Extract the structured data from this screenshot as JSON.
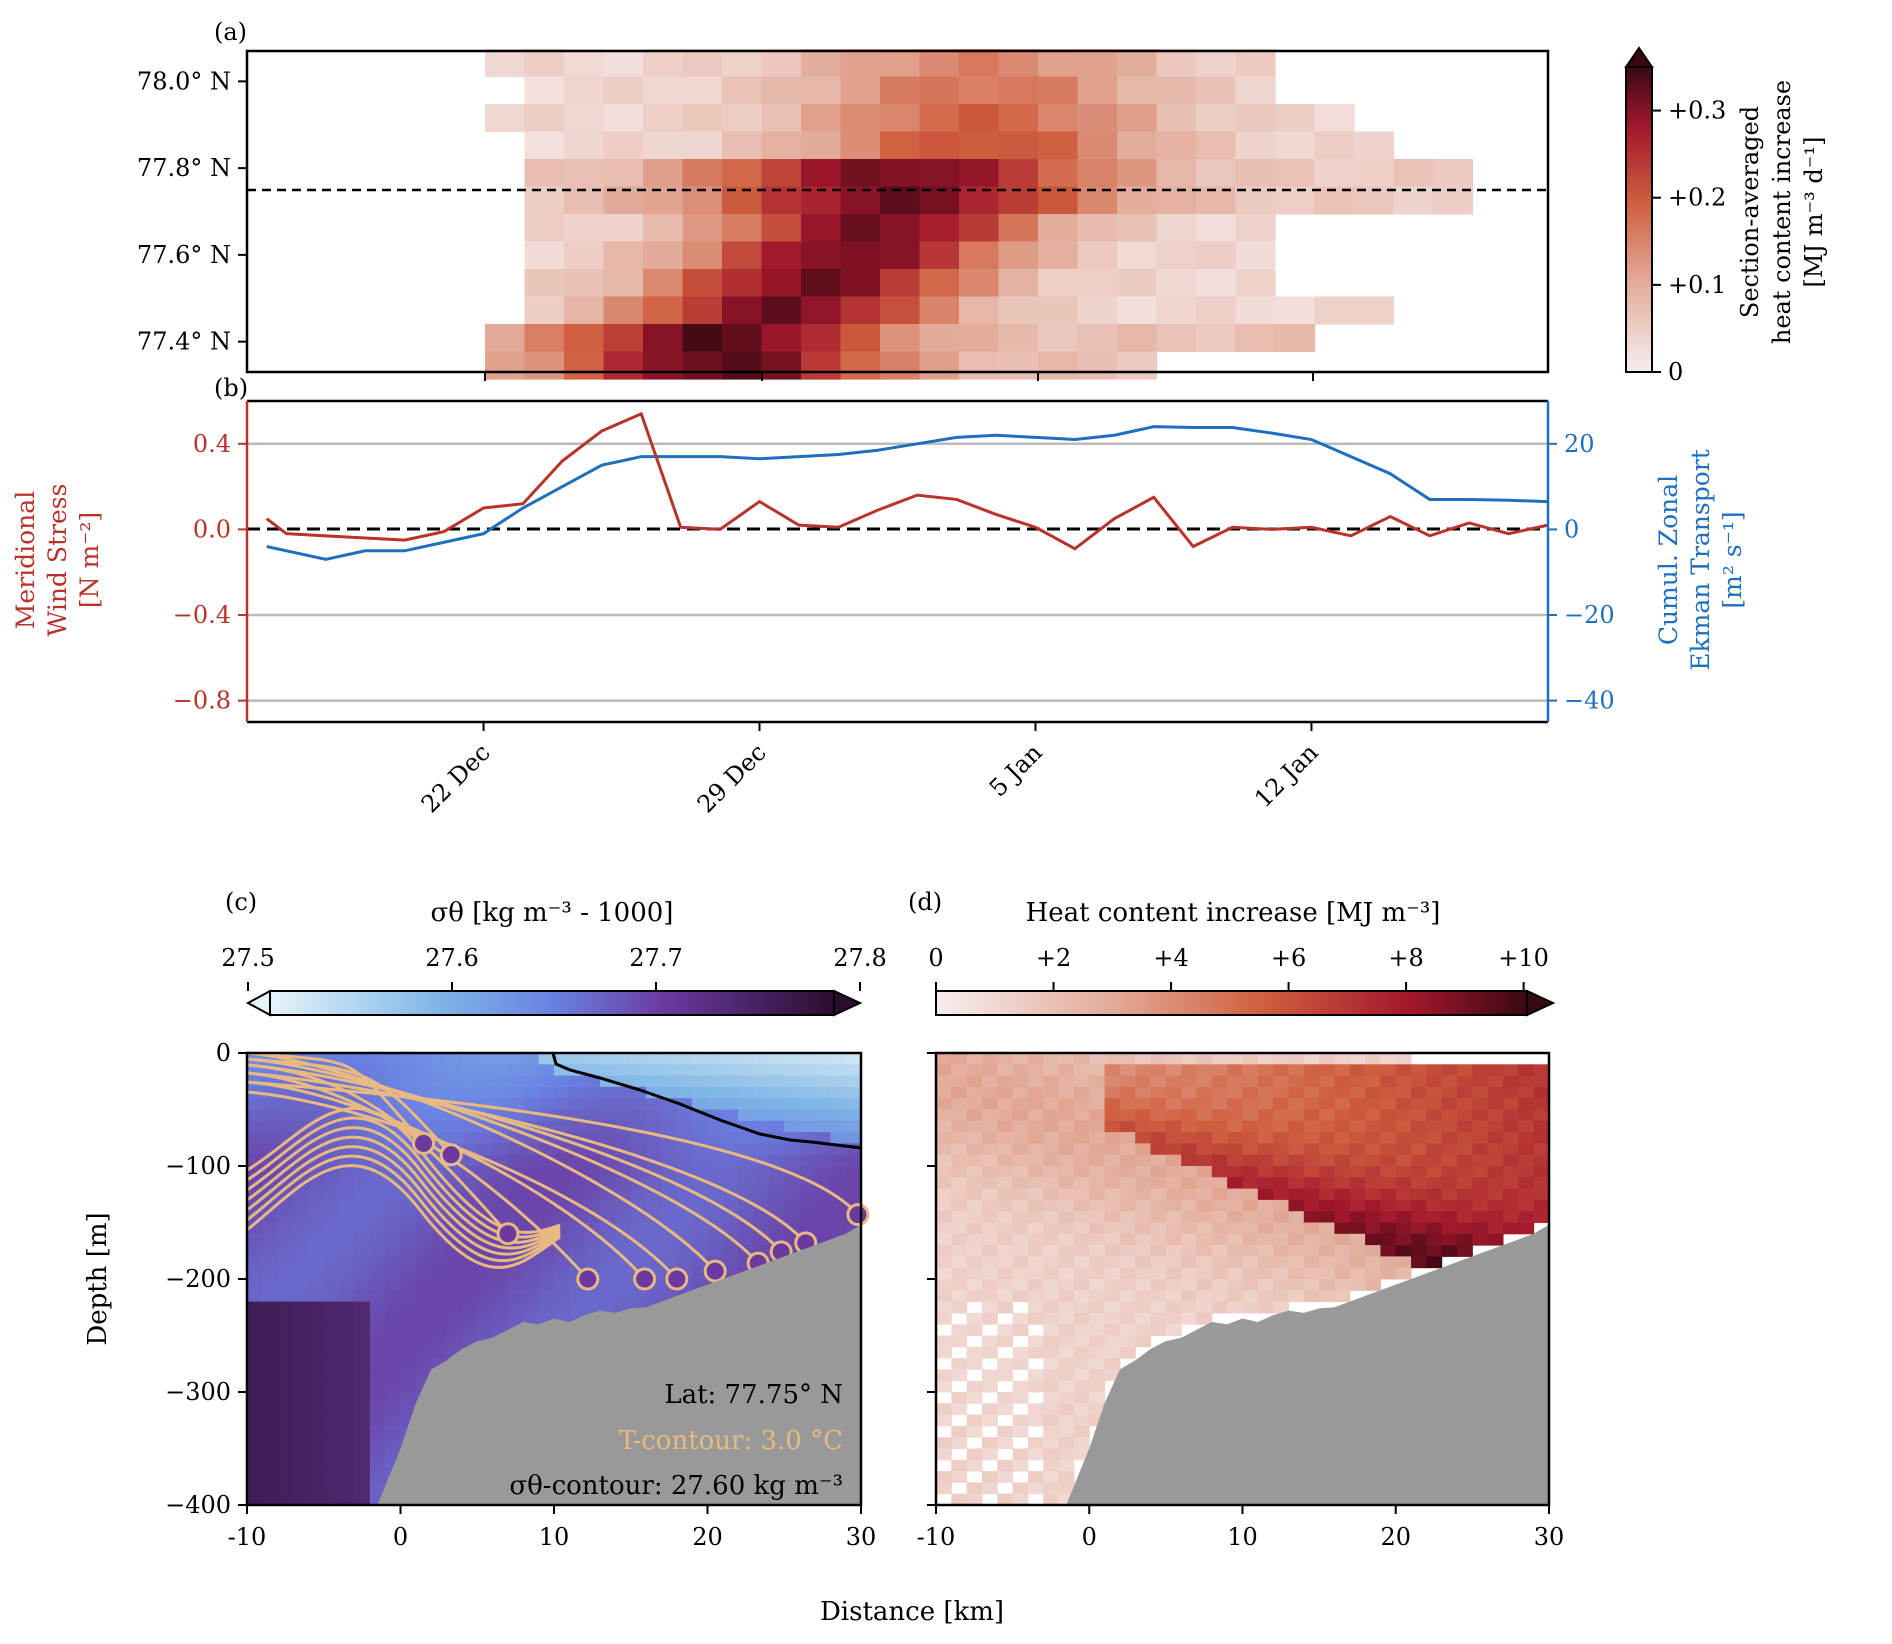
{
  "colors": {
    "heat_lo": "#f7eeee",
    "heat_mid": "#d0603f",
    "heat_hi": "#3a0812",
    "wind": "#b8332a",
    "ekman": "#1f6fbf",
    "contour_t": "#e8b982",
    "land": "#999999",
    "sigma_lo": "#e6f4f7",
    "sigma_mid": "#6a82e2",
    "sigma_hi2": "#6a3aa0",
    "sigma_hi": "#2a0e2e"
  },
  "chart_data": [
    {
      "id": "a",
      "panel_label": "(a)",
      "type": "heatmap",
      "title": "",
      "xlabel": "",
      "ylabel": "",
      "y_ticks": [
        "78.0° N",
        "77.8° N",
        "77.6° N",
        "77.4° N"
      ],
      "y_tick_values": [
        78.0,
        77.8,
        77.6,
        77.4
      ],
      "ylim": [
        77.33,
        78.07
      ],
      "reference_lat": 77.75,
      "colorbar": {
        "label_line1": "Section-averaged",
        "label_line2": "heat content increase",
        "label_line3": "[MJ m⁻³ d⁻¹]",
        "ticks": [
          "0",
          "+0.1",
          "+0.2",
          "+0.3"
        ],
        "tick_values": [
          0,
          0.1,
          0.2,
          0.3
        ],
        "range": [
          0,
          0.35
        ]
      }
    },
    {
      "id": "b",
      "panel_label": "(b)",
      "type": "line",
      "x_ticks": [
        "22 Dec",
        "29 Dec",
        "5 Jan",
        "12 Jan"
      ],
      "x_tick_values": [
        6,
        13,
        20,
        27
      ],
      "xlim": [
        0,
        33
      ],
      "left_axis": {
        "label_line1": "Meridional",
        "label_line2": "Wind Stress",
        "label_line3": "[N m⁻²]",
        "ticks": [
          "0.4",
          "0.0",
          "−0.4",
          "−0.8"
        ],
        "tick_values": [
          0.4,
          0.0,
          -0.4,
          -0.8
        ],
        "ylim": [
          -0.9,
          0.6
        ]
      },
      "right_axis": {
        "label_line1": "Cumul. Zonal",
        "label_line2": "Ekman Transport",
        "label_line3": "[m² s⁻¹]",
        "ticks": [
          "20",
          "0",
          "−20",
          "−40"
        ],
        "tick_values": [
          20,
          0,
          -20,
          -40
        ],
        "ylim": [
          -45,
          30
        ]
      },
      "series": [
        {
          "name": "Meridional Wind Stress",
          "axis": "left",
          "x": [
            0.5,
            1,
            2,
            3,
            4,
            5,
            6,
            7,
            8,
            9,
            10,
            11,
            12,
            13,
            14,
            15,
            16,
            17,
            18,
            19,
            20,
            21,
            22,
            23,
            24,
            25,
            26,
            27,
            28,
            29,
            30,
            31,
            32,
            33
          ],
          "values": [
            0.05,
            -0.02,
            -0.03,
            -0.04,
            -0.05,
            -0.01,
            0.1,
            0.12,
            0.32,
            0.46,
            0.54,
            0.01,
            0.0,
            0.13,
            0.02,
            0.01,
            0.09,
            0.16,
            0.14,
            0.07,
            0.01,
            -0.09,
            0.05,
            0.15,
            -0.08,
            0.01,
            0.0,
            0.01,
            -0.03,
            0.06,
            -0.03,
            0.03,
            -0.02,
            0.02
          ]
        },
        {
          "name": "Cumul. Zonal Ekman Transport",
          "axis": "right",
          "x": [
            0.5,
            1,
            2,
            3,
            4,
            5,
            6,
            7,
            8,
            9,
            10,
            11,
            12,
            13,
            14,
            15,
            16,
            17,
            18,
            19,
            20,
            21,
            22,
            23,
            24,
            25,
            26,
            27,
            28,
            29,
            30,
            31,
            32,
            33
          ],
          "values": [
            -4,
            -5,
            -7,
            -5,
            -5,
            -3,
            -1,
            5,
            10,
            15,
            17,
            17,
            17,
            16.5,
            17,
            17.5,
            18.5,
            20,
            21.5,
            22,
            21.5,
            21,
            22,
            24,
            23.8,
            23.8,
            22.5,
            21,
            17,
            13,
            7,
            7,
            6.8,
            6.5
          ]
        }
      ]
    },
    {
      "id": "c",
      "panel_label": "(c)",
      "type": "heatmap",
      "xlabel": "",
      "ylabel": "Depth [m]",
      "x_ticks": [
        "-10",
        "0",
        "10",
        "20",
        "30"
      ],
      "x_tick_values": [
        -10,
        0,
        10,
        20,
        30
      ],
      "y_ticks": [
        "0",
        "−100",
        "−200",
        "−300",
        "−400"
      ],
      "y_tick_values": [
        0,
        -100,
        -200,
        -300,
        -400
      ],
      "xlim": [
        -10,
        30
      ],
      "ylim": [
        -400,
        0
      ],
      "colorbar": {
        "label": "σθ [kg m⁻³ - 1000]",
        "ticks": [
          "27.5",
          "27.6",
          "27.7",
          "27.8"
        ],
        "tick_values": [
          27.5,
          27.6,
          27.7,
          27.8
        ],
        "range": [
          27.5,
          27.8
        ]
      },
      "annotations": {
        "lat": "Lat: 77.75° N",
        "t_contour": "T-contour: 3.0 °C",
        "sigma_contour": "σθ-contour: 27.60 kg m⁻³"
      },
      "bathymetry": {
        "x": [
          -10,
          -1.5,
          0,
          1,
          2,
          3,
          4,
          5,
          6,
          7,
          8,
          9,
          10,
          11,
          12,
          13,
          14,
          15,
          16,
          17,
          18,
          19,
          20,
          21,
          22,
          23,
          24,
          25,
          26,
          27,
          28,
          29,
          30
        ],
        "depth": [
          -400,
          -400,
          -350,
          -310,
          -280,
          -272,
          -262,
          -255,
          -252,
          -245,
          -238,
          -240,
          -235,
          -238,
          -232,
          -228,
          -230,
          -226,
          -225,
          -220,
          -215,
          -210,
          -205,
          -200,
          -195,
          -190,
          -185,
          -180,
          -175,
          -170,
          -165,
          -160,
          -152
        ]
      },
      "floats": {
        "x": [
          1.5,
          3.3,
          7,
          12.2,
          15.9,
          18,
          20.5,
          23.3,
          24.8,
          26.4,
          29.8
        ],
        "depth": [
          -80,
          -90,
          -160,
          -200,
          -200,
          -200,
          -193,
          -186,
          -176,
          -168,
          -143
        ]
      }
    },
    {
      "id": "d",
      "panel_label": "(d)",
      "type": "heatmap",
      "xlabel": "",
      "ylabel": "",
      "x_ticks": [
        "-10",
        "0",
        "10",
        "20",
        "30"
      ],
      "x_tick_values": [
        -10,
        0,
        10,
        20,
        30
      ],
      "xlim": [
        -10,
        30
      ],
      "ylim": [
        -400,
        0
      ],
      "colorbar": {
        "label": "Heat content increase [MJ m⁻³]",
        "ticks": [
          "0",
          "+2",
          "+4",
          "+6",
          "+8",
          "+10"
        ],
        "tick_values": [
          0,
          2,
          4,
          6,
          8,
          10
        ],
        "range": [
          0,
          10.5
        ]
      }
    }
  ],
  "shared_xlabel": "Distance [km]"
}
